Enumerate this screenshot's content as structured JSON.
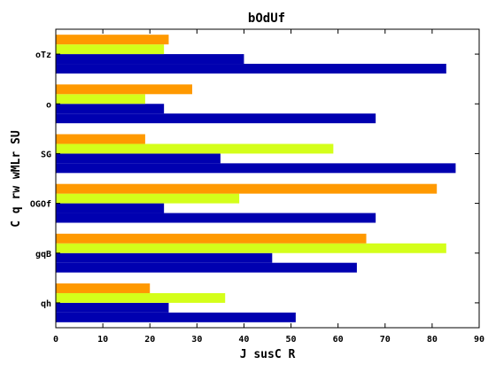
{
  "chart_data": {
    "type": "bar",
    "orientation": "horizontal",
    "title": "bOdUf",
    "xlabel": "J susC R",
    "ylabel": "C q rw wMLr SU",
    "xlim": [
      0,
      90
    ],
    "xticks": [
      0,
      10,
      20,
      30,
      40,
      50,
      60,
      70,
      80,
      90
    ],
    "categories": [
      "qh",
      "gqB",
      "OGOf",
      "SG",
      "o",
      "oTz"
    ],
    "grid": false,
    "legend": "none",
    "series": [
      {
        "color": "#0000b0",
        "values": [
          51,
          64,
          68,
          85,
          68,
          83
        ]
      },
      {
        "color": "#0000b0",
        "values": [
          24,
          46,
          23,
          35,
          23,
          40
        ]
      },
      {
        "color": "#d4ff1a",
        "values": [
          36,
          83,
          39,
          59,
          19,
          23
        ]
      },
      {
        "color": "#ff9900",
        "values": [
          20,
          66,
          81,
          19,
          29,
          24
        ]
      }
    ]
  }
}
